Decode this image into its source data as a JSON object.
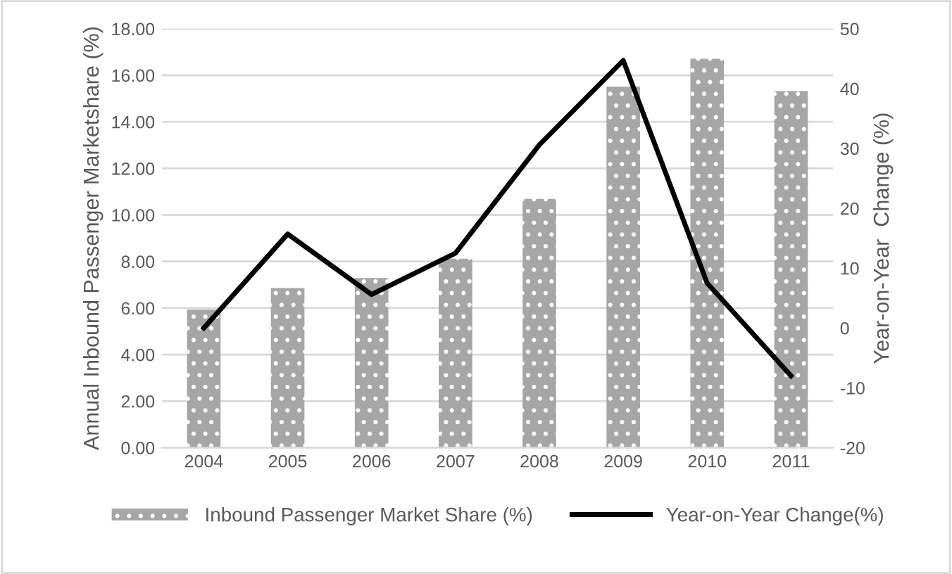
{
  "chart_data": {
    "type": "bar",
    "categories": [
      "2004",
      "2005",
      "2006",
      "2007",
      "2008",
      "2009",
      "2010",
      "2011"
    ],
    "ylabel": "Annual Inbound Passenger Marketshare (%)",
    "y2label": "Year-on-Year  Change (%)",
    "ylim": [
      0,
      18
    ],
    "yticks": [
      {
        "value": 0,
        "label": "0.00"
      },
      {
        "value": 2,
        "label": "2.00"
      },
      {
        "value": 4,
        "label": "4.00"
      },
      {
        "value": 6,
        "label": "6.00"
      },
      {
        "value": 8,
        "label": "8.00"
      },
      {
        "value": 10,
        "label": "10.00"
      },
      {
        "value": 12,
        "label": "12.00"
      },
      {
        "value": 14,
        "label": "14.00"
      },
      {
        "value": 16,
        "label": "16.00"
      },
      {
        "value": 18,
        "label": "18.00"
      }
    ],
    "y2lim": [
      -20,
      50
    ],
    "y2ticks": [
      -20,
      -10,
      0,
      10,
      20,
      30,
      40,
      50
    ],
    "grid": "y",
    "legend": "bottom",
    "series": [
      {
        "name": "Inbound Passenger Market Share (%)",
        "color": "#a6a6a6",
        "values": [
          5.94,
          6.86,
          7.29,
          8.12,
          10.69,
          15.51,
          16.71,
          15.32
        ]
      },
      {
        "name": "Year-on-Year Change(%)",
        "type": "line",
        "axis": "y2",
        "color": "#000000",
        "marker": "none",
        "line_style": "solid",
        "values": [
          0,
          15.7,
          5.6,
          12.5,
          30.6,
          44.7,
          7.5,
          -8
        ]
      }
    ]
  }
}
